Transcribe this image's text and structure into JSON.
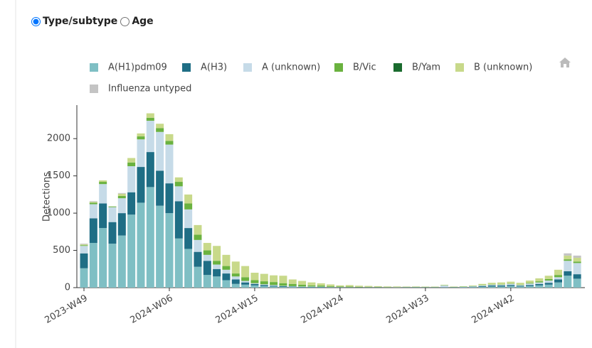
{
  "controls": {
    "options": [
      "Type/subtype",
      "Age"
    ],
    "selected": 0
  },
  "chart_data": {
    "type": "stacked_bar",
    "y_label": "Detections",
    "categories": [
      "2023-W49",
      null,
      null,
      null,
      null,
      null,
      null,
      null,
      null,
      "2024-W06",
      null,
      null,
      null,
      null,
      null,
      null,
      null,
      null,
      "2024-W15",
      null,
      null,
      null,
      null,
      null,
      null,
      null,
      null,
      "2024-W24",
      null,
      null,
      null,
      null,
      null,
      null,
      null,
      null,
      "2024-W33",
      null,
      null,
      null,
      null,
      null,
      null,
      null,
      null,
      "2024-W42",
      null,
      null,
      null,
      null,
      null,
      null,
      null
    ],
    "series": [
      {
        "name": "A(H1)pdm09",
        "color": "#7fbfc4",
        "values": [
          260,
          600,
          800,
          590,
          700,
          980,
          1140,
          1350,
          1100,
          1000,
          660,
          520,
          280,
          170,
          150,
          100,
          50,
          40,
          30,
          20,
          15,
          10,
          10,
          5,
          5,
          5,
          3,
          3,
          2,
          2,
          2,
          2,
          2,
          2,
          2,
          3,
          2,
          2,
          3,
          3,
          5,
          8,
          10,
          15,
          15,
          20,
          15,
          20,
          30,
          40,
          70,
          160,
          120
        ]
      },
      {
        "name": "A(H3)",
        "color": "#1f6e85",
        "values": [
          200,
          330,
          330,
          290,
          300,
          300,
          480,
          470,
          470,
          400,
          500,
          280,
          200,
          190,
          100,
          90,
          60,
          30,
          20,
          15,
          10,
          10,
          5,
          5,
          5,
          5,
          3,
          2,
          2,
          2,
          2,
          2,
          1,
          1,
          2,
          2,
          2,
          2,
          2,
          2,
          3,
          5,
          10,
          15,
          15,
          15,
          10,
          15,
          20,
          25,
          40,
          60,
          60
        ]
      },
      {
        "name": "A (unknown)",
        "color": "#c6dbe8",
        "values": [
          100,
          190,
          260,
          200,
          200,
          350,
          370,
          420,
          520,
          520,
          200,
          250,
          160,
          80,
          60,
          50,
          40,
          20,
          10,
          10,
          10,
          5,
          5,
          5,
          5,
          3,
          2,
          2,
          2,
          1,
          2,
          2,
          1,
          2,
          3,
          2,
          2,
          2,
          25,
          2,
          3,
          5,
          10,
          10,
          10,
          15,
          10,
          20,
          20,
          30,
          30,
          140,
          150
        ]
      },
      {
        "name": "B/Vic",
        "color": "#6ab23f",
        "values": [
          10,
          20,
          30,
          10,
          30,
          50,
          40,
          40,
          50,
          50,
          60,
          80,
          70,
          60,
          50,
          50,
          40,
          50,
          40,
          40,
          40,
          35,
          30,
          25,
          15,
          15,
          10,
          8,
          8,
          6,
          5,
          4,
          4,
          3,
          3,
          3,
          3,
          3,
          3,
          3,
          3,
          3,
          5,
          5,
          5,
          5,
          5,
          10,
          15,
          20,
          30,
          20,
          20
        ]
      },
      {
        "name": "B/Yam",
        "color": "#1a6b2e",
        "values": [
          0,
          0,
          0,
          0,
          0,
          0,
          0,
          0,
          0,
          0,
          0,
          0,
          0,
          0,
          0,
          0,
          0,
          0,
          0,
          0,
          0,
          0,
          0,
          0,
          0,
          0,
          0,
          0,
          0,
          0,
          0,
          0,
          0,
          0,
          0,
          0,
          0,
          0,
          0,
          0,
          0,
          0,
          0,
          0,
          0,
          0,
          0,
          0,
          0,
          0,
          0,
          0,
          0
        ]
      },
      {
        "name": "B (unknown)",
        "color": "#c8d98a",
        "values": [
          10,
          10,
          20,
          0,
          30,
          60,
          40,
          60,
          60,
          90,
          60,
          120,
          130,
          100,
          200,
          150,
          160,
          150,
          100,
          100,
          90,
          100,
          60,
          50,
          40,
          30,
          25,
          15,
          20,
          15,
          12,
          10,
          8,
          8,
          5,
          6,
          5,
          5,
          5,
          5,
          5,
          8,
          15,
          20,
          25,
          25,
          25,
          30,
          40,
          45,
          70,
          50,
          50
        ]
      },
      {
        "name": "Influenza untyped",
        "color": "#c4c4c4",
        "values": [
          10,
          10,
          0,
          0,
          10,
          0,
          0,
          0,
          0,
          0,
          0,
          0,
          0,
          0,
          0,
          0,
          0,
          0,
          0,
          0,
          0,
          0,
          0,
          0,
          0,
          0,
          0,
          0,
          0,
          0,
          0,
          0,
          0,
          0,
          0,
          0,
          0,
          0,
          0,
          0,
          0,
          0,
          0,
          0,
          0,
          0,
          0,
          0,
          0,
          0,
          0,
          30,
          30
        ]
      }
    ],
    "ylim": [
      0,
      2450
    ],
    "yticks": [
      0,
      500,
      1000,
      1500,
      2000
    ]
  }
}
